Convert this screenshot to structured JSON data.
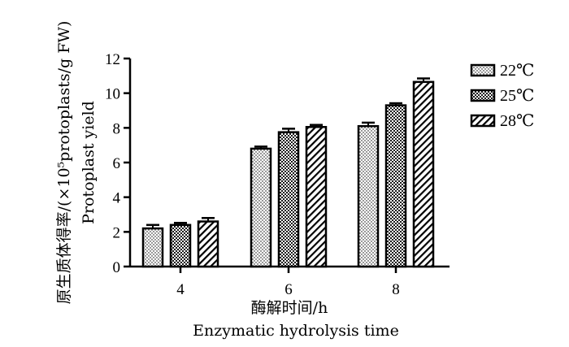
{
  "chart_data": {
    "type": "bar",
    "categories": [
      "4",
      "6",
      "8"
    ],
    "series": [
      {
        "name": "22℃",
        "pattern": "dots",
        "values": [
          2.2,
          6.8,
          8.1
        ],
        "errors": [
          0.2,
          0.12,
          0.2
        ]
      },
      {
        "name": "25℃",
        "pattern": "checker",
        "values": [
          2.4,
          7.75,
          9.3
        ],
        "errors": [
          0.12,
          0.2,
          0.12
        ]
      },
      {
        "name": "28℃",
        "pattern": "hatch",
        "values": [
          2.6,
          8.05,
          10.65
        ],
        "errors": [
          0.2,
          0.12,
          0.2
        ]
      }
    ],
    "ylim": [
      0,
      12
    ],
    "yticks": [
      0,
      2,
      4,
      6,
      8,
      10,
      12
    ],
    "ylabel_cn": "原生质体得率/(×10⁵protoplasts/g FW)",
    "ylabel_en": "Protoplast yield",
    "xlabel_cn": "酶解时间/h",
    "xlabel_en": "Enzymatic hydrolysis time",
    "grid": false,
    "legend_position": "top-right"
  }
}
